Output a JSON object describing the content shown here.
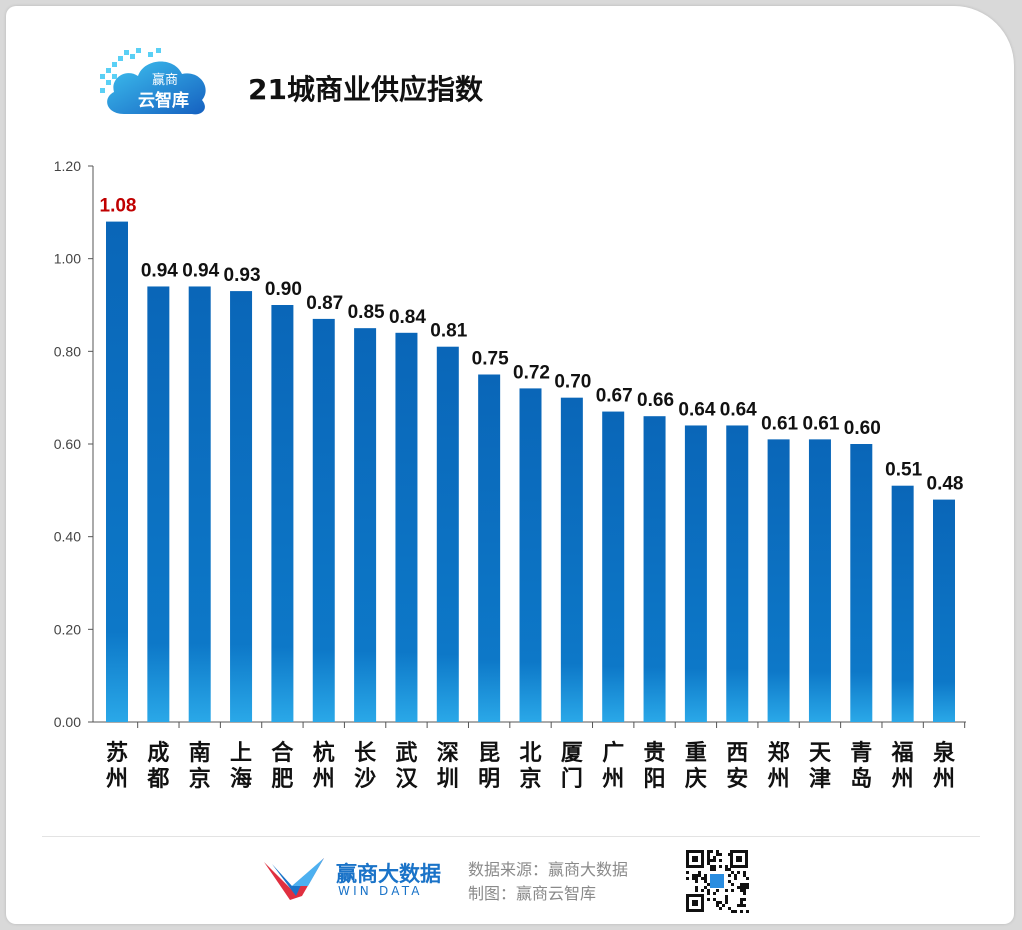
{
  "logo": {
    "line1": "赢商",
    "line2": "云智库"
  },
  "title": "21城商业供应指数",
  "chart_data": {
    "type": "bar",
    "title": "21城商业供应指数",
    "categories": [
      "苏州",
      "成都",
      "南京",
      "上海",
      "合肥",
      "杭州",
      "长沙",
      "武汉",
      "深圳",
      "昆明",
      "北京",
      "厦门",
      "广州",
      "贵阳",
      "重庆",
      "西安",
      "郑州",
      "天津",
      "青岛",
      "福州",
      "泉州"
    ],
    "values": [
      1.08,
      0.94,
      0.94,
      0.93,
      0.9,
      0.87,
      0.85,
      0.84,
      0.81,
      0.75,
      0.72,
      0.7,
      0.67,
      0.66,
      0.64,
      0.64,
      0.61,
      0.61,
      0.6,
      0.51,
      0.48
    ],
    "value_labels": [
      "1.08",
      "0.94",
      "0.94",
      "0.93",
      "0.90",
      "0.87",
      "0.85",
      "0.84",
      "0.81",
      "0.75",
      "0.72",
      "0.70",
      "0.67",
      "0.66",
      "0.64",
      "0.64",
      "0.61",
      "0.61",
      "0.60",
      "0.51",
      "0.48"
    ],
    "highlight_index": 0,
    "ylim": [
      0,
      1.2
    ],
    "yticks": [
      "0.00",
      "0.20",
      "0.40",
      "0.60",
      "0.80",
      "1.00",
      "1.20"
    ],
    "xlabel": "",
    "ylabel": "",
    "grid": false,
    "colors": {
      "bar_top": "#0a66b8",
      "bar_bottom": "#2aa8e8",
      "highlight_label": "#c00000",
      "label": "#111111",
      "axis": "#555555"
    }
  },
  "footer": {
    "brand_name": "赢商大数据",
    "brand_sub": "WIN DATA",
    "source_line": "数据来源：赢商大数据",
    "credit_line": "制图：赢商云智库"
  },
  "icons": {
    "logo": "cloud-logo-icon",
    "brand": "winshang-bird-icon",
    "qr": "qr-code-icon"
  }
}
